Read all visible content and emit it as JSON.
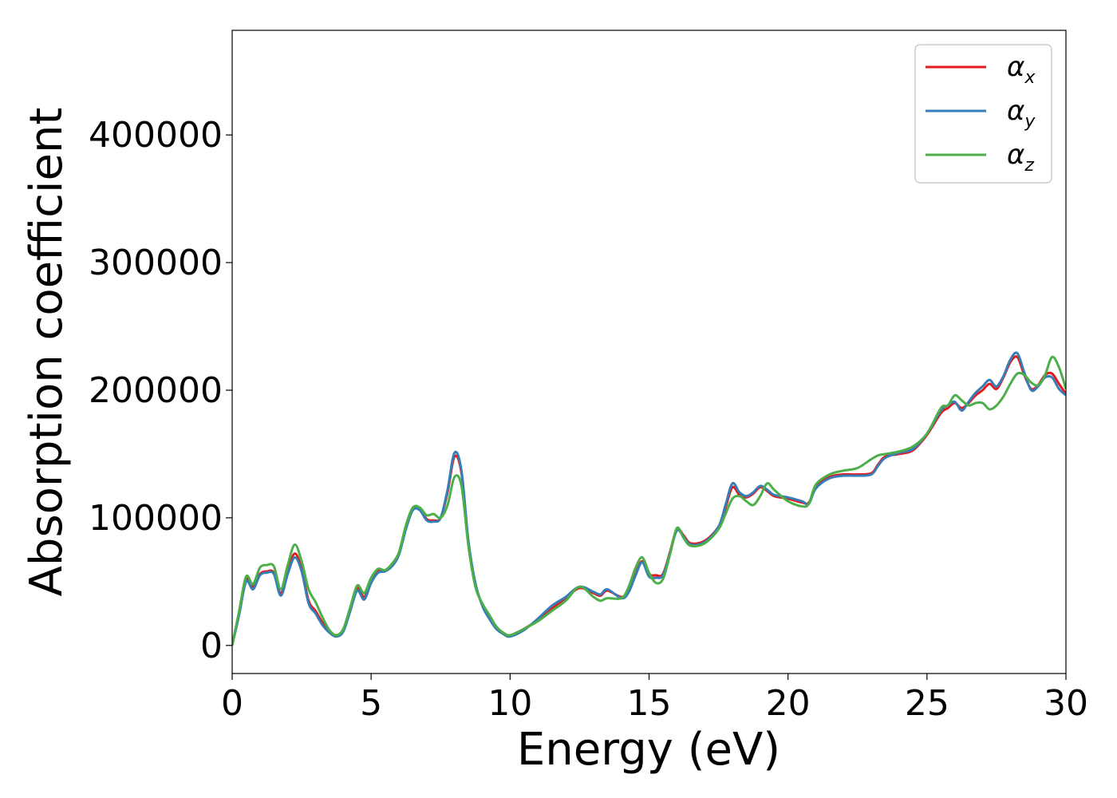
{
  "chart_data": {
    "type": "line",
    "xlabel": "Energy (eV)",
    "ylabel": "Absorption coefficient",
    "xlim": [
      0,
      30
    ],
    "ylim": [
      -22000,
      482000
    ],
    "xticks": [
      "0",
      "5",
      "10",
      "15",
      "20",
      "25",
      "30"
    ],
    "xtick_values": [
      0,
      5,
      10,
      15,
      20,
      25,
      30
    ],
    "yticks": [
      "0",
      "100000",
      "200000",
      "300000",
      "400000"
    ],
    "ytick_values": [
      0,
      100000,
      200000,
      300000,
      400000
    ],
    "grid": false,
    "legend_position": "top-right",
    "series": [
      {
        "name": "α_x",
        "symbol": "α",
        "sub": "x",
        "color": "#e41a1c",
        "x": [
          0,
          0.25,
          0.5,
          0.75,
          1.0,
          1.25,
          1.5,
          1.75,
          2.0,
          2.25,
          2.5,
          2.75,
          3.0,
          3.25,
          3.5,
          3.75,
          4.0,
          4.25,
          4.5,
          4.75,
          5.0,
          5.25,
          5.5,
          5.75,
          6.0,
          6.25,
          6.5,
          6.75,
          7.0,
          7.25,
          7.5,
          7.75,
          8.0,
          8.25,
          8.5,
          8.75,
          9.0,
          9.25,
          9.5,
          9.75,
          10.0,
          10.5,
          11.0,
          11.5,
          12.0,
          12.5,
          13.0,
          13.25,
          13.5,
          14.0,
          14.25,
          14.5,
          14.75,
          15.0,
          15.25,
          15.5,
          15.75,
          16.0,
          16.25,
          16.5,
          17.0,
          17.5,
          17.75,
          18.0,
          18.25,
          18.5,
          18.75,
          19.0,
          19.25,
          19.5,
          20.0,
          20.5,
          20.75,
          21.0,
          21.5,
          22.0,
          22.5,
          23.0,
          23.25,
          23.5,
          24.0,
          24.5,
          25.0,
          25.5,
          25.75,
          26.0,
          26.25,
          26.5,
          26.75,
          27.0,
          27.25,
          27.5,
          27.75,
          28.0,
          28.25,
          28.5,
          28.75,
          29.0,
          29.25,
          29.5,
          29.75,
          30.0
        ],
        "values": [
          0,
          25000,
          52000,
          46000,
          56000,
          58000,
          57000,
          41000,
          58000,
          72000,
          60000,
          35000,
          27000,
          18000,
          11000,
          8000,
          12000,
          28000,
          45000,
          38000,
          50000,
          58000,
          59000,
          63000,
          72000,
          92000,
          107000,
          107000,
          99000,
          98000,
          100000,
          120000,
          148000,
          135000,
          80000,
          48000,
          32000,
          22000,
          14000,
          10000,
          8000,
          13000,
          20000,
          29000,
          37000,
          45000,
          41000,
          39000,
          43000,
          38000,
          42000,
          55000,
          66000,
          56000,
          55000,
          56000,
          73000,
          91000,
          86000,
          80000,
          82000,
          93000,
          108000,
          124000,
          118000,
          116000,
          119000,
          124000,
          121000,
          117000,
          115000,
          112000,
          112000,
          124000,
          132000,
          134000,
          134000,
          135000,
          142000,
          148000,
          150000,
          153000,
          165000,
          182000,
          186000,
          190000,
          186000,
          190000,
          196000,
          200000,
          205000,
          201000,
          210000,
          222000,
          226000,
          212000,
          201000,
          204000,
          212000,
          213000,
          205000,
          197000
        ]
      },
      {
        "name": "α_y",
        "symbol": "α",
        "sub": "y",
        "color": "#377eb8",
        "x": [
          0,
          0.25,
          0.5,
          0.75,
          1.0,
          1.25,
          1.5,
          1.75,
          2.0,
          2.25,
          2.5,
          2.75,
          3.0,
          3.25,
          3.5,
          3.75,
          4.0,
          4.25,
          4.5,
          4.75,
          5.0,
          5.25,
          5.5,
          5.75,
          6.0,
          6.25,
          6.5,
          6.75,
          7.0,
          7.25,
          7.5,
          7.75,
          8.0,
          8.25,
          8.5,
          8.75,
          9.0,
          9.25,
          9.5,
          9.75,
          10.0,
          10.5,
          11.0,
          11.5,
          12.0,
          12.5,
          13.0,
          13.25,
          13.5,
          14.0,
          14.25,
          14.5,
          14.75,
          15.0,
          15.25,
          15.5,
          15.75,
          16.0,
          16.25,
          16.5,
          17.0,
          17.5,
          17.75,
          18.0,
          18.25,
          18.5,
          18.75,
          19.0,
          19.25,
          19.5,
          20.0,
          20.5,
          20.75,
          21.0,
          21.5,
          22.0,
          22.5,
          23.0,
          23.25,
          23.5,
          24.0,
          24.5,
          25.0,
          25.5,
          25.75,
          26.0,
          26.25,
          26.5,
          26.75,
          27.0,
          27.25,
          27.5,
          27.75,
          28.0,
          28.25,
          28.5,
          28.75,
          29.0,
          29.25,
          29.5,
          29.75,
          30.0
        ],
        "values": [
          0,
          24000,
          50000,
          44000,
          55000,
          57000,
          56000,
          39000,
          56000,
          69000,
          58000,
          33000,
          25000,
          16000,
          10000,
          7000,
          11000,
          27000,
          43000,
          36000,
          49000,
          57000,
          58000,
          62000,
          71000,
          91000,
          106000,
          106000,
          98000,
          97000,
          100000,
          122000,
          151000,
          137000,
          82000,
          49000,
          31000,
          21000,
          13000,
          9000,
          7000,
          12000,
          21000,
          31000,
          38000,
          46000,
          42000,
          40000,
          44000,
          37000,
          41000,
          54000,
          65000,
          54000,
          53000,
          55000,
          72000,
          90000,
          85000,
          79000,
          81000,
          93000,
          110000,
          127000,
          120000,
          117000,
          120000,
          125000,
          122000,
          118000,
          116000,
          113000,
          111000,
          123000,
          131000,
          133000,
          133000,
          134000,
          141000,
          147000,
          151000,
          154000,
          166000,
          184000,
          188000,
          191000,
          184000,
          191000,
          198000,
          203000,
          208000,
          203000,
          211000,
          224000,
          229000,
          214000,
          200000,
          203000,
          210000,
          210000,
          201000,
          196000
        ]
      },
      {
        "name": "α_z",
        "symbol": "α",
        "sub": "z",
        "color": "#4daf4a",
        "x": [
          0,
          0.25,
          0.5,
          0.75,
          1.0,
          1.25,
          1.5,
          1.75,
          2.0,
          2.25,
          2.5,
          2.75,
          3.0,
          3.25,
          3.5,
          3.75,
          4.0,
          4.25,
          4.5,
          4.75,
          5.0,
          5.25,
          5.5,
          5.75,
          6.0,
          6.25,
          6.5,
          6.75,
          7.0,
          7.25,
          7.5,
          7.75,
          8.0,
          8.25,
          8.5,
          8.75,
          9.0,
          9.25,
          9.5,
          9.75,
          10.0,
          10.5,
          11.0,
          11.5,
          12.0,
          12.5,
          13.0,
          13.25,
          13.5,
          14.0,
          14.25,
          14.5,
          14.75,
          15.0,
          15.25,
          15.5,
          15.75,
          16.0,
          16.25,
          16.5,
          17.0,
          17.5,
          17.75,
          18.0,
          18.25,
          18.5,
          18.75,
          19.0,
          19.25,
          19.5,
          20.0,
          20.5,
          20.75,
          21.0,
          21.5,
          22.0,
          22.5,
          23.0,
          23.25,
          23.5,
          24.0,
          24.5,
          25.0,
          25.5,
          25.75,
          26.0,
          26.25,
          26.5,
          26.75,
          27.0,
          27.25,
          27.5,
          27.75,
          28.0,
          28.25,
          28.5,
          28.75,
          29.0,
          29.25,
          29.5,
          29.75,
          30.0
        ],
        "values": [
          0,
          27000,
          54000,
          48000,
          61000,
          63000,
          62000,
          44000,
          63000,
          79000,
          66000,
          44000,
          34000,
          22000,
          12000,
          8000,
          13000,
          30000,
          47000,
          41000,
          53000,
          60000,
          59000,
          64000,
          73000,
          94000,
          108000,
          108000,
          102000,
          103000,
          100000,
          110000,
          132000,
          125000,
          78000,
          46000,
          33000,
          24000,
          15000,
          10000,
          8000,
          13000,
          19000,
          27000,
          35000,
          46000,
          38000,
          35000,
          37000,
          37000,
          45000,
          60000,
          69000,
          57000,
          49000,
          52000,
          71000,
          92000,
          84000,
          78000,
          80000,
          91000,
          103000,
          115000,
          117000,
          113000,
          110000,
          117000,
          127000,
          122000,
          113000,
          109000,
          111000,
          126000,
          134000,
          137000,
          139000,
          146000,
          149000,
          150000,
          152000,
          156000,
          166000,
          186000,
          188000,
          196000,
          192000,
          188000,
          190000,
          190000,
          185000,
          188000,
          195000,
          205000,
          213000,
          212000,
          206000,
          204000,
          212000,
          226000,
          218000,
          201000
        ]
      }
    ]
  }
}
